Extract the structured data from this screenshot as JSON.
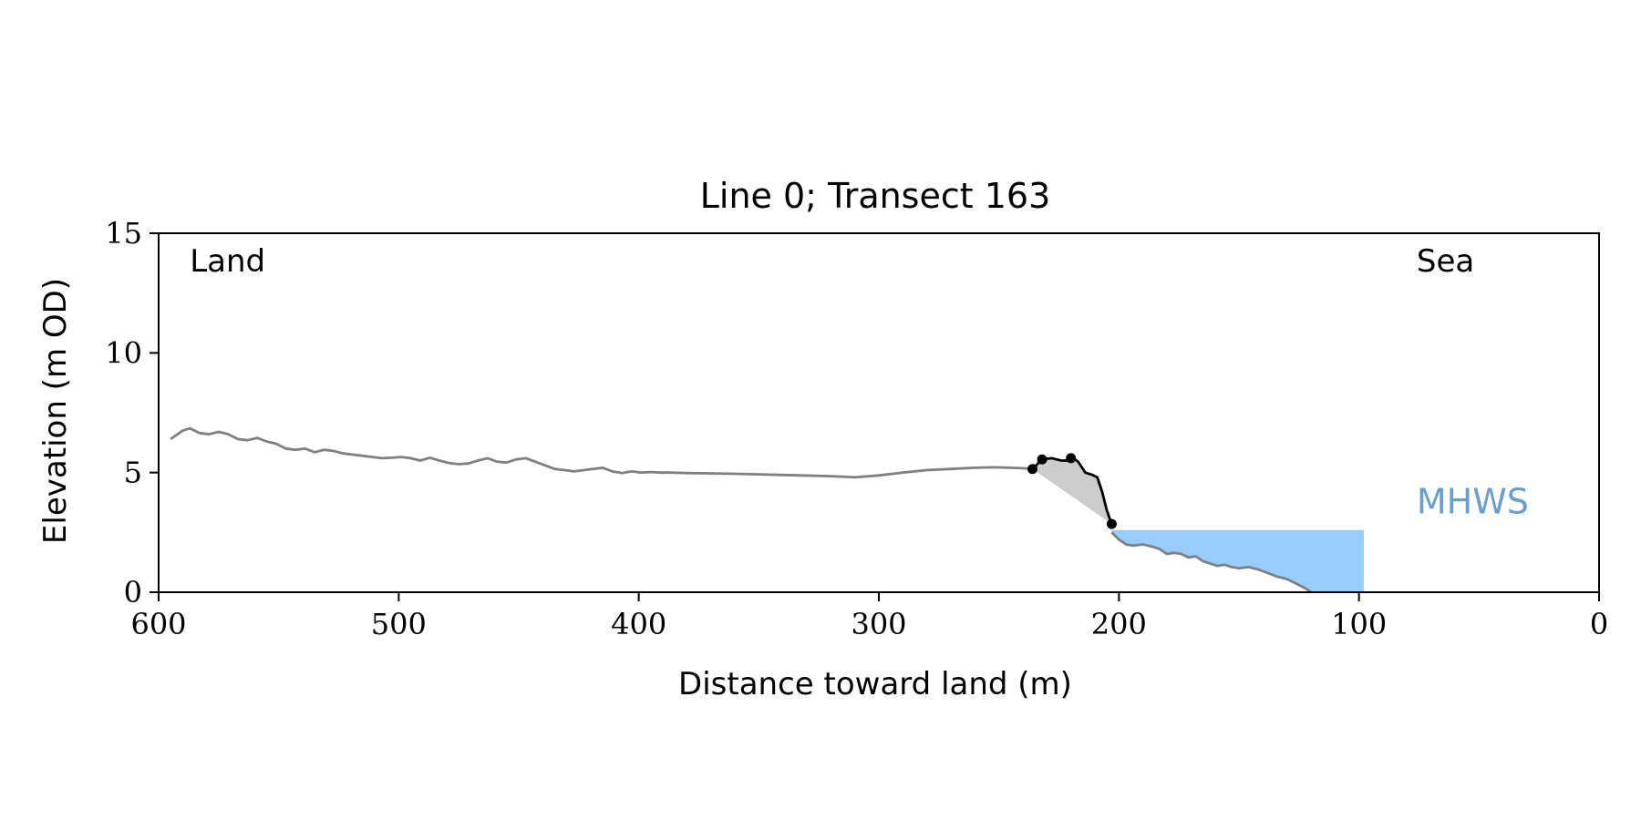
{
  "chart_data": {
    "type": "line",
    "title": "Line 0; Transect 163",
    "xlabel": "Distance toward land (m)",
    "ylabel": "Elevation (m OD)",
    "xlim": [
      600,
      0
    ],
    "ylim": [
      0,
      15
    ],
    "x_ticks": [
      600,
      500,
      400,
      300,
      200,
      100,
      0
    ],
    "y_ticks": [
      0,
      5,
      10,
      15
    ],
    "grid": false,
    "annotations": [
      {
        "text": "Land",
        "x": 587,
        "y": 13.4,
        "color": "#000000"
      },
      {
        "text": "Sea",
        "x": 76,
        "y": 13.4,
        "color": "#000000"
      },
      {
        "text": "MHWS",
        "x": 76,
        "y": 3.3,
        "color": "#6a9fcf"
      }
    ],
    "colors": {
      "profile": "#808080",
      "cliff": "#000000",
      "cliff_fill": "#cccccc",
      "sea_fill": "#99ccff",
      "mhws_label": "#6a9fcf"
    },
    "mhws": {
      "elevation": 2.6,
      "x_start": 203,
      "x_end": 98
    },
    "series": [
      {
        "role": "profile",
        "x": [
          595,
          590,
          587,
          583,
          579,
          575,
          571,
          567,
          563,
          559,
          555,
          551,
          547,
          543,
          539,
          535,
          531,
          527,
          523,
          519,
          515,
          511,
          507,
          503,
          499,
          495,
          491,
          487,
          483,
          479,
          475,
          471,
          467,
          463,
          459,
          455,
          451,
          447,
          443,
          439,
          435,
          431,
          427,
          423,
          419,
          415,
          411,
          407,
          403,
          399,
          395,
          391,
          387,
          380,
          360,
          340,
          320,
          310,
          300,
          290,
          280,
          270,
          260,
          252,
          245,
          240,
          236
        ],
        "y": [
          6.4,
          6.75,
          6.85,
          6.65,
          6.6,
          6.7,
          6.6,
          6.4,
          6.35,
          6.45,
          6.3,
          6.2,
          6.0,
          5.95,
          6.0,
          5.85,
          5.95,
          5.9,
          5.8,
          5.75,
          5.7,
          5.65,
          5.6,
          5.62,
          5.65,
          5.6,
          5.5,
          5.62,
          5.5,
          5.4,
          5.35,
          5.38,
          5.5,
          5.6,
          5.45,
          5.42,
          5.55,
          5.6,
          5.45,
          5.3,
          5.15,
          5.1,
          5.05,
          5.1,
          5.15,
          5.2,
          5.05,
          4.98,
          5.05,
          5.0,
          5.02,
          5.0,
          5.0,
          4.98,
          4.95,
          4.9,
          4.85,
          4.8,
          4.88,
          5.0,
          5.1,
          5.15,
          5.2,
          5.22,
          5.2,
          5.18,
          5.15
        ]
      },
      {
        "role": "profile-seaward",
        "x": [
          203,
          200,
          197,
          194,
          190,
          186,
          183,
          180,
          177,
          174,
          171,
          168,
          165,
          162,
          159,
          156,
          153,
          150,
          146,
          142,
          138,
          134,
          130,
          126,
          122,
          120
        ],
        "y": [
          2.5,
          2.2,
          2.0,
          1.95,
          2.0,
          1.9,
          1.8,
          1.6,
          1.65,
          1.6,
          1.45,
          1.5,
          1.3,
          1.2,
          1.1,
          1.15,
          1.05,
          1.0,
          1.05,
          0.95,
          0.8,
          0.65,
          0.55,
          0.35,
          0.15,
          0.0
        ]
      },
      {
        "role": "cliff",
        "x": [
          236,
          232,
          228,
          224,
          221,
          219,
          217,
          214,
          211,
          209,
          207,
          205,
          203
        ],
        "y": [
          5.15,
          5.55,
          5.6,
          5.5,
          5.5,
          5.6,
          5.45,
          5.0,
          4.9,
          4.8,
          4.2,
          3.4,
          2.85
        ]
      }
    ],
    "cliff_points": [
      {
        "x": 236,
        "y": 5.15
      },
      {
        "x": 232,
        "y": 5.55
      },
      {
        "x": 220,
        "y": 5.6
      },
      {
        "x": 203,
        "y": 2.85
      }
    ]
  }
}
